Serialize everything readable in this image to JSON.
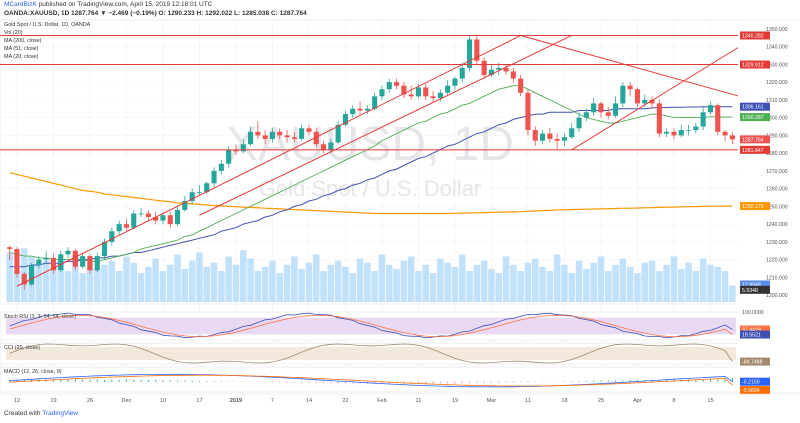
{
  "header": {
    "line1_author": "MCardBizK",
    "line1_rest": "published on TradingView.com, April 15, 2019 12:18:01 UTC",
    "line2": "OANDA:XAUUSD, 1D  1287.764 ▼ −2.469 (−0.19%) O: 1290.233 H: 1292.022 L: 1285.038 C: 1287.764"
  },
  "legend": {
    "title": "Gold Spot / U.S. Dollar, 1D, OANDA",
    "vol": "Vol (20)",
    "ma200": "MA (200, close)",
    "ma51": "MA (51, close)",
    "ma20": "MA (20, close)"
  },
  "watermark": {
    "symbol": "XAUUSD, 1D",
    "name": "Gold Spot / U.S. Dollar"
  },
  "colors": {
    "up": "#26a69a",
    "down": "#ef5350",
    "ma200": "#ff9800",
    "ma51": "#3f51b5",
    "ma20": "#4caf50",
    "trend": "#e53935",
    "volume": "#90caf9",
    "cci": "#a38a6d",
    "stoch_k": "#3f51b5",
    "stoch_d": "#ff7043",
    "macd": "#2962ff",
    "signal": "#ff6d00"
  },
  "price_axis": {
    "ticks": [
      "1350.000",
      "1340.000",
      "1330.000",
      "1320.000",
      "1310.000",
      "1300.000",
      "1290.000",
      "1280.000",
      "1270.000",
      "1260.000",
      "1250.000",
      "1240.000",
      "1230.000",
      "1220.000",
      "1210.000",
      "1200.000"
    ],
    "marks": [
      {
        "label": "1346.282",
        "value": 1346.282,
        "bg": "#e53935"
      },
      {
        "label": "1329.912",
        "value": 1329.912,
        "bg": "#e53935"
      },
      {
        "label": "1306.161",
        "value": 1306.161,
        "bg": "#3f51b5"
      },
      {
        "label": "1300.287",
        "value": 1300.287,
        "bg": "#4caf50"
      },
      {
        "label": "1287.764",
        "value": 1287.764,
        "bg": "#ef5350"
      },
      {
        "label": "1281.847",
        "value": 1281.847,
        "bg": "#e53935"
      },
      {
        "label": "1250.175",
        "value": 1250.175,
        "bg": "#ff9800"
      },
      {
        "label": "12.9948",
        "value": 1206,
        "bg": "#5b8def"
      },
      {
        "label": "5.5348",
        "value": 1203,
        "bg": "#333333"
      }
    ]
  },
  "chart_data": {
    "type": "candlestick",
    "symbol": "OANDA:XAUUSD",
    "title": "Gold Spot / U.S. Dollar, 1D, OANDA",
    "ylim": [
      1195,
      1355
    ],
    "x_ticks": [
      "12",
      "19",
      "26",
      "Dec",
      "10",
      "17",
      "2019",
      "7",
      "14",
      "22",
      "Feb",
      "11",
      "19",
      "Mar",
      "11",
      "18",
      "25",
      "Apr",
      "8",
      "15"
    ],
    "candles": [
      [
        1227,
        1226,
        1228,
        1220
      ],
      [
        1226,
        1212,
        1227,
        1210
      ],
      [
        1212,
        1206,
        1213,
        1203
      ],
      [
        1206,
        1217,
        1218,
        1205
      ],
      [
        1217,
        1220,
        1222,
        1215
      ],
      [
        1220,
        1221,
        1225,
        1218
      ],
      [
        1221,
        1214,
        1223,
        1212
      ],
      [
        1214,
        1223,
        1225,
        1213
      ],
      [
        1223,
        1225,
        1227,
        1221
      ],
      [
        1225,
        1216,
        1226,
        1214
      ],
      [
        1216,
        1222,
        1224,
        1215
      ],
      [
        1222,
        1214,
        1223,
        1212
      ],
      [
        1214,
        1222,
        1224,
        1213
      ],
      [
        1222,
        1230,
        1232,
        1220
      ],
      [
        1230,
        1236,
        1238,
        1228
      ],
      [
        1236,
        1240,
        1242,
        1234
      ],
      [
        1240,
        1238,
        1243,
        1236
      ],
      [
        1238,
        1246,
        1248,
        1237
      ],
      [
        1246,
        1246,
        1249,
        1244
      ],
      [
        1246,
        1244,
        1248,
        1242
      ],
      [
        1244,
        1242,
        1247,
        1240
      ],
      [
        1242,
        1245,
        1247,
        1240
      ],
      [
        1245,
        1240,
        1247,
        1238
      ],
      [
        1240,
        1248,
        1250,
        1239
      ],
      [
        1248,
        1253,
        1256,
        1247
      ],
      [
        1253,
        1258,
        1260,
        1251
      ],
      [
        1258,
        1258,
        1262,
        1256
      ],
      [
        1258,
        1263,
        1264,
        1257
      ],
      [
        1263,
        1270,
        1272,
        1261
      ],
      [
        1270,
        1274,
        1276,
        1268
      ],
      [
        1274,
        1282,
        1284,
        1272
      ],
      [
        1282,
        1281,
        1285,
        1279
      ],
      [
        1281,
        1285,
        1288,
        1280
      ],
      [
        1285,
        1292,
        1295,
        1284
      ],
      [
        1292,
        1290,
        1298,
        1288
      ],
      [
        1290,
        1288,
        1293,
        1285
      ],
      [
        1288,
        1292,
        1294,
        1286
      ],
      [
        1292,
        1290,
        1294,
        1288
      ],
      [
        1290,
        1289,
        1293,
        1286
      ],
      [
        1289,
        1288,
        1292,
        1286
      ],
      [
        1288,
        1294,
        1296,
        1287
      ],
      [
        1294,
        1292,
        1296,
        1290
      ],
      [
        1292,
        1285,
        1294,
        1283
      ],
      [
        1285,
        1282,
        1287,
        1280
      ],
      [
        1282,
        1286,
        1288,
        1280
      ],
      [
        1286,
        1296,
        1298,
        1285
      ],
      [
        1296,
        1302,
        1304,
        1295
      ],
      [
        1302,
        1305,
        1307,
        1300
      ],
      [
        1305,
        1304,
        1309,
        1302
      ],
      [
        1304,
        1305,
        1307,
        1302
      ],
      [
        1305,
        1312,
        1314,
        1304
      ],
      [
        1312,
        1316,
        1318,
        1310
      ],
      [
        1316,
        1320,
        1322,
        1314
      ],
      [
        1320,
        1318,
        1322,
        1316
      ],
      [
        1318,
        1313,
        1320,
        1311
      ],
      [
        1313,
        1312,
        1318,
        1310
      ],
      [
        1312,
        1317,
        1319,
        1311
      ],
      [
        1317,
        1312,
        1319,
        1310
      ],
      [
        1312,
        1311,
        1315,
        1309
      ],
      [
        1311,
        1314,
        1316,
        1309
      ],
      [
        1314,
        1318,
        1321,
        1312
      ],
      [
        1318,
        1322,
        1323,
        1316
      ],
      [
        1322,
        1328,
        1331,
        1320
      ],
      [
        1328,
        1344,
        1346,
        1326
      ],
      [
        1344,
        1332,
        1346,
        1330
      ],
      [
        1332,
        1324,
        1334,
        1322
      ],
      [
        1324,
        1327,
        1330,
        1323
      ],
      [
        1327,
        1328,
        1331,
        1324
      ],
      [
        1328,
        1326,
        1330,
        1324
      ],
      [
        1326,
        1322,
        1328,
        1320
      ],
      [
        1322,
        1314,
        1324,
        1312
      ],
      [
        1314,
        1293,
        1316,
        1290
      ],
      [
        1293,
        1287,
        1295,
        1284
      ],
      [
        1287,
        1291,
        1293,
        1285
      ],
      [
        1291,
        1288,
        1294,
        1286
      ],
      [
        1288,
        1287,
        1291,
        1282
      ],
      [
        1287,
        1289,
        1291,
        1284
      ],
      [
        1289,
        1294,
        1297,
        1288
      ],
      [
        1294,
        1300,
        1303,
        1292
      ],
      [
        1300,
        1303,
        1305,
        1298
      ],
      [
        1303,
        1308,
        1311,
        1301
      ],
      [
        1308,
        1303,
        1309,
        1300
      ],
      [
        1303,
        1301,
        1306,
        1299
      ],
      [
        1301,
        1308,
        1312,
        1300
      ],
      [
        1308,
        1318,
        1320,
        1306
      ],
      [
        1318,
        1316,
        1320,
        1312
      ],
      [
        1316,
        1308,
        1317,
        1306
      ],
      [
        1308,
        1310,
        1313,
        1306
      ],
      [
        1310,
        1308,
        1312,
        1305
      ],
      [
        1308,
        1291,
        1310,
        1289
      ],
      [
        1291,
        1292,
        1294,
        1289
      ],
      [
        1292,
        1290,
        1294,
        1288
      ],
      [
        1290,
        1293,
        1296,
        1289
      ],
      [
        1293,
        1293,
        1296,
        1290
      ],
      [
        1293,
        1295,
        1297,
        1291
      ],
      [
        1295,
        1303,
        1306,
        1293
      ],
      [
        1303,
        1307,
        1309,
        1302
      ],
      [
        1307,
        1292,
        1308,
        1290
      ],
      [
        1292,
        1290,
        1293,
        1287
      ],
      [
        1290,
        1287.764,
        1292.022,
        1285.038
      ]
    ],
    "ma20": [
      1224,
      1223,
      1222,
      1222,
      1221,
      1221,
      1220,
      1220,
      1220,
      1220,
      1220,
      1219,
      1219,
      1220,
      1221,
      1222,
      1223,
      1224,
      1226,
      1227,
      1228,
      1229,
      1230,
      1231,
      1233,
      1234,
      1236,
      1238,
      1240,
      1242,
      1244,
      1246,
      1248,
      1250,
      1252,
      1254,
      1256,
      1258,
      1260,
      1262,
      1264,
      1266,
      1268,
      1270,
      1272,
      1274,
      1276,
      1278,
      1280,
      1282,
      1284,
      1287,
      1289,
      1291,
      1293,
      1295,
      1297,
      1298,
      1300,
      1302,
      1303,
      1305,
      1307,
      1308,
      1310,
      1312,
      1314,
      1316,
      1317,
      1318,
      1318,
      1316,
      1314,
      1312,
      1310,
      1308,
      1306,
      1304,
      1302,
      1300,
      1299,
      1298,
      1297,
      1297,
      1298,
      1299,
      1300,
      1301,
      1302,
      1302,
      1301,
      1300,
      1300,
      1300,
      1300,
      1300,
      1300.5,
      1300.4,
      1300.3,
      1300.287
    ],
    "ma51": [
      1216,
      1216,
      1216,
      1217,
      1217,
      1218,
      1218,
      1218,
      1219,
      1219,
      1220,
      1220,
      1221,
      1221,
      1222,
      1222,
      1223,
      1224,
      1224,
      1225,
      1226,
      1227,
      1228,
      1229,
      1230,
      1231,
      1232,
      1233,
      1234,
      1236,
      1237,
      1238,
      1240,
      1241,
      1242,
      1244,
      1245,
      1247,
      1248,
      1250,
      1251,
      1253,
      1254,
      1256,
      1257,
      1259,
      1260,
      1262,
      1263,
      1265,
      1266,
      1268,
      1270,
      1271,
      1273,
      1275,
      1277,
      1278,
      1280,
      1282,
      1284,
      1285,
      1287,
      1289,
      1291,
      1292,
      1294,
      1296,
      1297,
      1299,
      1300,
      1301,
      1302,
      1302,
      1303,
      1303,
      1303,
      1303,
      1304,
      1304,
      1304,
      1304,
      1304,
      1305,
      1305,
      1305,
      1305,
      1305,
      1305.5,
      1305.6,
      1305.7,
      1305.8,
      1305.9,
      1306,
      1306,
      1306.1,
      1306.1,
      1306.15,
      1306.16,
      1306.161
    ],
    "ma200": [
      1269,
      1268,
      1267,
      1266,
      1265,
      1264,
      1263,
      1262,
      1261,
      1260,
      1259,
      1258.5,
      1258,
      1257,
      1256.5,
      1256,
      1255.5,
      1255,
      1254.5,
      1254,
      1253.5,
      1253,
      1252.5,
      1252,
      1251.7,
      1251.4,
      1251.1,
      1250.8,
      1250.5,
      1250.2,
      1250,
      1249.8,
      1249.6,
      1249.4,
      1249.2,
      1249,
      1248.8,
      1248.6,
      1248.4,
      1248.2,
      1248,
      1247.8,
      1247.6,
      1247.4,
      1247.2,
      1247,
      1246.8,
      1246.6,
      1246.4,
      1246.2,
      1246,
      1246,
      1246,
      1246,
      1246,
      1246,
      1246,
      1246,
      1246,
      1246,
      1246,
      1246.1,
      1246.2,
      1246.3,
      1246.4,
      1246.5,
      1246.6,
      1246.7,
      1246.8,
      1246.9,
      1247,
      1247.2,
      1247.4,
      1247.6,
      1247.8,
      1248,
      1248.1,
      1248.2,
      1248.3,
      1248.4,
      1248.5,
      1248.6,
      1248.7,
      1248.8,
      1248.9,
      1249,
      1249.1,
      1249.2,
      1249.3,
      1249.4,
      1249.5,
      1249.6,
      1249.7,
      1249.8,
      1249.9,
      1250,
      1250.05,
      1250.1,
      1250.15,
      1250.175
    ],
    "volume": [
      48,
      30,
      52,
      44,
      36,
      40,
      34,
      42,
      30,
      46,
      28,
      38,
      32,
      36,
      40,
      30,
      44,
      38,
      28,
      34,
      42,
      30,
      36,
      46,
      32,
      40,
      48,
      34,
      38,
      30,
      44,
      36,
      50,
      42,
      30,
      34,
      40,
      28,
      36,
      44,
      32,
      38,
      46,
      30,
      36,
      40,
      34,
      28,
      42,
      38,
      30,
      46,
      36,
      32,
      40,
      44,
      30,
      36,
      28,
      42,
      38,
      34,
      46,
      30,
      36,
      40,
      32,
      28,
      44,
      36,
      30,
      38,
      42,
      34,
      30,
      46,
      36,
      28,
      40,
      32,
      38,
      44,
      30,
      36,
      42,
      34,
      28,
      38,
      40,
      30,
      36,
      44,
      32,
      38,
      30,
      42,
      36,
      34,
      30,
      16
    ],
    "trendlines": [
      {
        "from": [
          1,
          1205
        ],
        "to": [
          70,
          1346.282
        ]
      },
      {
        "from": [
          70,
          1346.282
        ],
        "to": [
          100,
          1312
        ]
      },
      {
        "from": [
          77,
          1281.847
        ],
        "to": [
          100,
          1340
        ]
      },
      {
        "from": [
          26,
          1245
        ],
        "to": [
          77,
          1346.282
        ]
      }
    ],
    "hlines": [
      1346.282,
      1329.912,
      1281.847
    ],
    "stoch_rsi": {
      "label": "Stoch RSI (3, 3, 14, 14, close)",
      "k_last": 37.4429,
      "d_last": 19.5521,
      "ylim": [
        0,
        100
      ],
      "band": [
        20,
        80
      ]
    },
    "cci": {
      "label": "CCI (20, close)",
      "last": -84.7468
    },
    "macd": {
      "label": "MACD (12, 26, close, 9)",
      "macd_last": -0.215,
      "signal_last": -3.9694
    }
  },
  "footer": {
    "prefix": "Created with",
    "brand": "TradingView"
  }
}
